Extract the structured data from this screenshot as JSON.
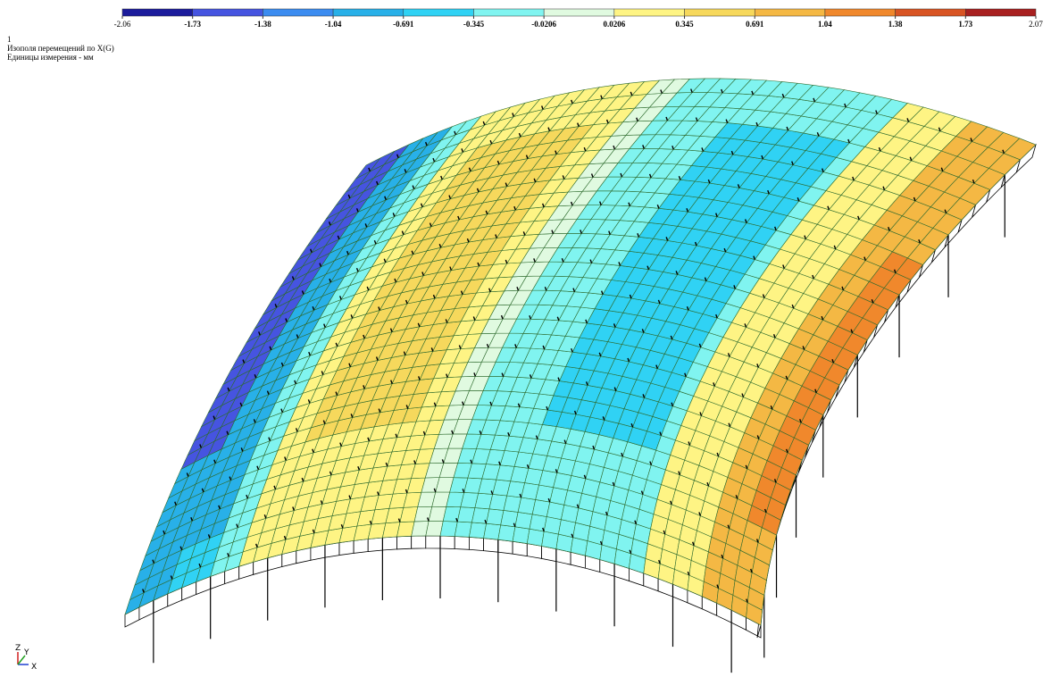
{
  "legend": {
    "labels": [
      "-2.06",
      "-1.73",
      "-1.38",
      "-1.04",
      "-0.691",
      "-0.345",
      "-0.0206",
      "0.0206",
      "0.345",
      "0.691",
      "1.04",
      "1.38",
      "1.73",
      "2.07"
    ],
    "colors": [
      "#1c1c9c",
      "#4654e0",
      "#3c8cf0",
      "#28b0e8",
      "#30d2f4",
      "#80f4f0",
      "#e0fae0",
      "#fef484",
      "#f6d85c",
      "#f4b844",
      "#f0882c",
      "#d85424",
      "#a82020"
    ]
  },
  "header": {
    "case": "1",
    "title": "Изополя перемещений по X(G)",
    "units": "Единицы измерения - мм"
  },
  "axes": {
    "z": "Z",
    "y": "Y",
    "x": "X"
  }
}
